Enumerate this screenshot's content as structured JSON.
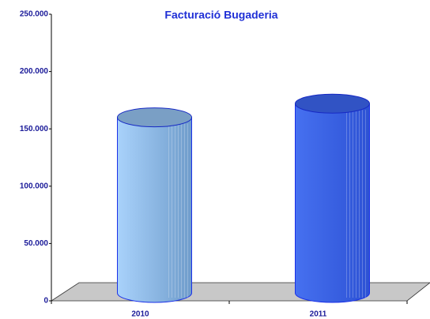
{
  "chart_data": {
    "type": "bar",
    "title": "Facturació Bugaderia",
    "categories": [
      "2010",
      "2011"
    ],
    "series": [
      {
        "name": "Facturació",
        "colors": [
          "#8fbbe8",
          "#3a62e6"
        ],
        "values": [
          160000,
          172000
        ]
      }
    ],
    "ylim": [
      0,
      250000
    ],
    "yticks": [
      0,
      {
        "value": 50000,
        "label": "50.000"
      },
      {
        "value": 100000,
        "label": "100.000"
      },
      {
        "value": 150000,
        "label": "150.000"
      },
      {
        "value": 200000,
        "label": "200.000"
      },
      {
        "value": 250000,
        "label": "250.000"
      }
    ]
  }
}
